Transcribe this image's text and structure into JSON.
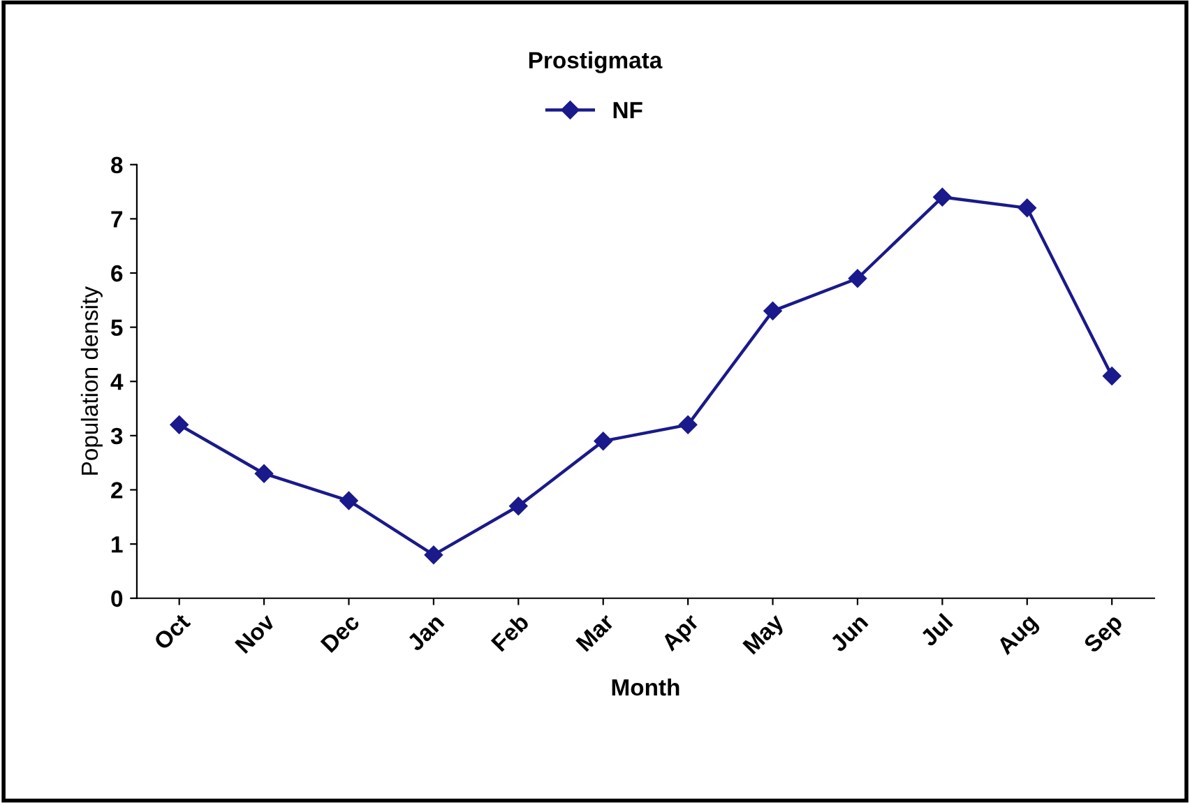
{
  "chart_data": {
    "type": "line",
    "title": "Prostigmata",
    "xlabel": "Month",
    "ylabel": "Population density",
    "categories": [
      "Oct",
      "Nov",
      "Dec",
      "Jan",
      "Feb",
      "Mar",
      "Apr",
      "May",
      "Jun",
      "Jul",
      "Aug",
      "Sep"
    ],
    "series": [
      {
        "name": "NF",
        "color": "#1a1a8c",
        "values": [
          3.2,
          2.3,
          1.8,
          0.8,
          1.7,
          2.9,
          3.2,
          5.3,
          5.9,
          7.4,
          7.2,
          4.1
        ]
      }
    ],
    "ylim": [
      0,
      8
    ],
    "yticks": [
      0,
      1,
      2,
      3,
      4,
      5,
      6,
      7,
      8
    ],
    "grid": false,
    "legend": "top",
    "marker": "diamond",
    "line_style": "solid"
  }
}
